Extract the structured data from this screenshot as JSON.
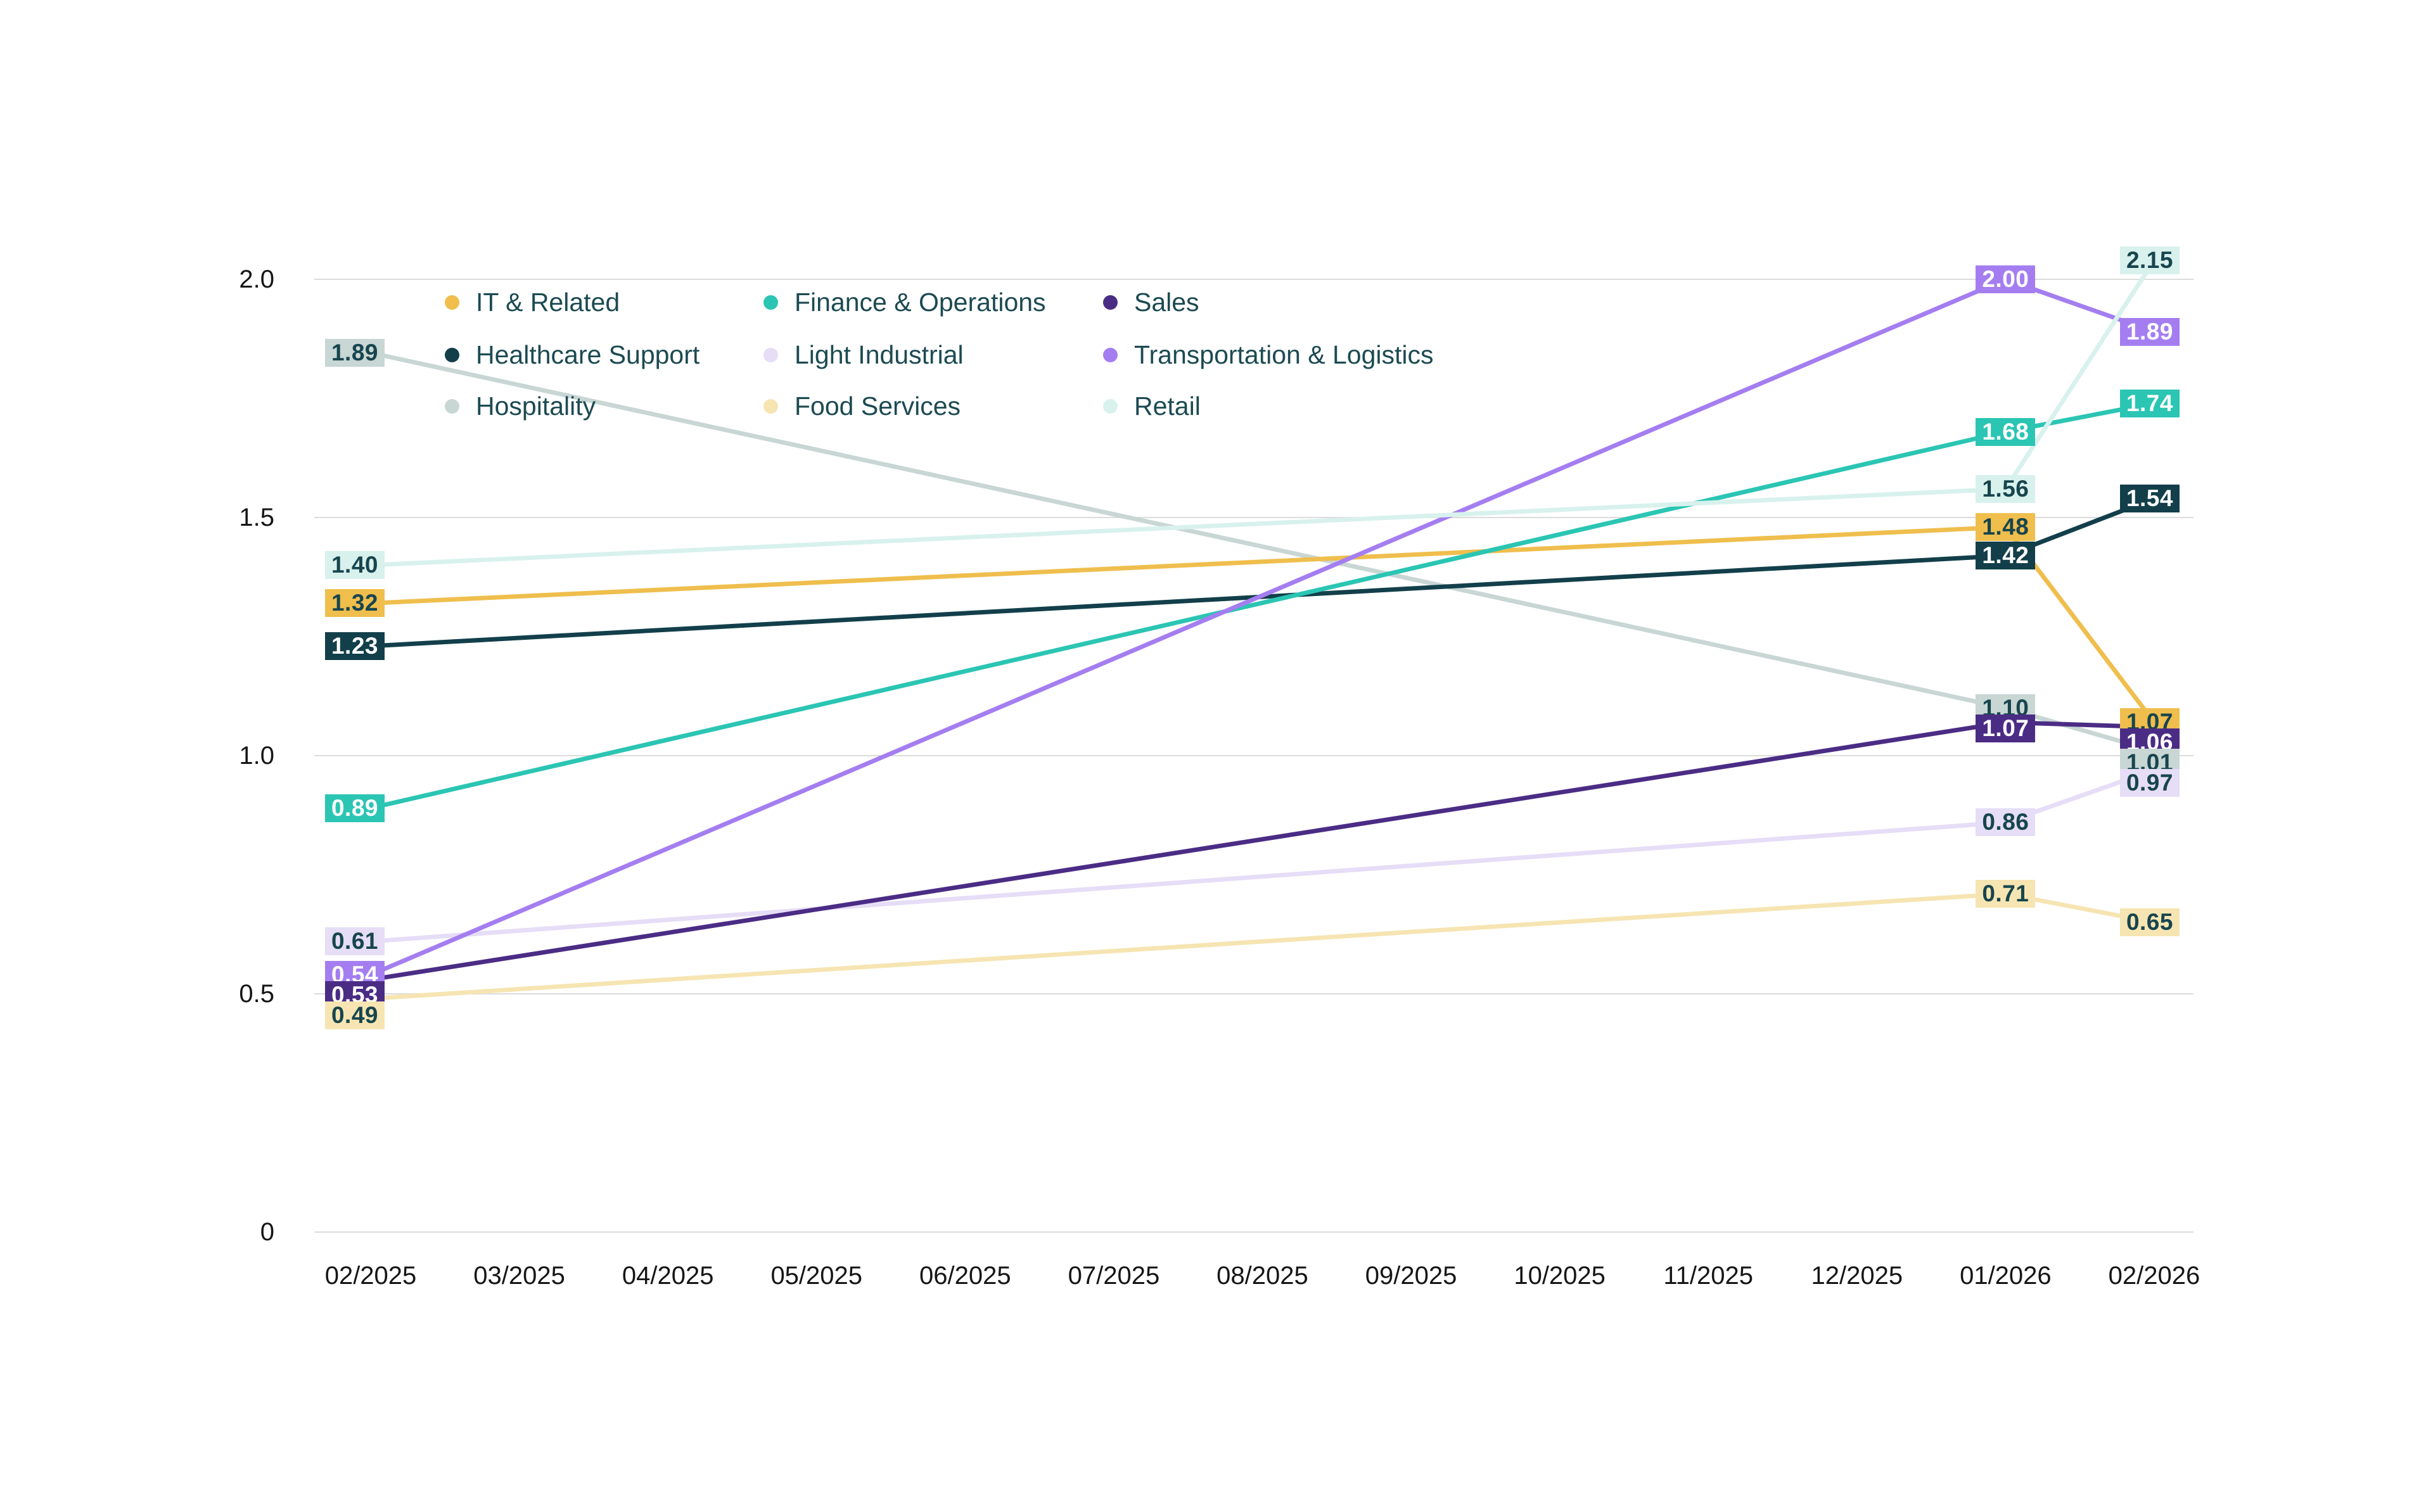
{
  "chart_data": {
    "type": "line",
    "title": "",
    "xlabel": "",
    "ylabel": "",
    "x_tick_labels": [
      "02/2025",
      "03/2025",
      "04/2025",
      "05/2025",
      "06/2025",
      "07/2025",
      "08/2025",
      "09/2025",
      "10/2025",
      "11/2025",
      "12/2025",
      "01/2026",
      "02/2026"
    ],
    "y_tick_labels": [
      "0",
      "0.5",
      "1.0",
      "1.5",
      "2.0"
    ],
    "ylim": [
      0,
      2.0
    ],
    "grid": "horizontal",
    "labeled_x_points": [
      "02/2025",
      "01/2026",
      "02/2026"
    ],
    "series": [
      {
        "name": "IT & Related",
        "color": "#EFBE4D",
        "label_text_style": "dark",
        "values": [
          1.32,
          1.48,
          1.07
        ],
        "display": [
          "1.32",
          "1.48",
          "1.07"
        ]
      },
      {
        "name": "Finance & Operations",
        "color": "#2BC5B3",
        "label_text_style": "white",
        "values": [
          0.89,
          1.68,
          1.74
        ],
        "display": [
          "0.89",
          "1.68",
          "1.74"
        ]
      },
      {
        "name": "Sales",
        "color": "#4B2C85",
        "label_text_style": "white",
        "values": [
          0.53,
          1.07,
          1.06
        ],
        "display": [
          "0.53",
          "1.07",
          "1.06"
        ]
      },
      {
        "name": "Healthcare Support",
        "color": "#123F4A",
        "label_text_style": "white",
        "values": [
          1.23,
          1.42,
          1.54
        ],
        "display": [
          "1.23",
          "1.42",
          "1.54"
        ]
      },
      {
        "name": "Light Industrial",
        "color": "#E6DDF7",
        "label_text_style": "dark",
        "values": [
          0.61,
          0.86,
          0.97
        ],
        "display": [
          "0.61",
          "0.86",
          "0.97"
        ]
      },
      {
        "name": "Transportation & Logistics",
        "color": "#A47EF0",
        "label_text_style": "white",
        "values": [
          0.54,
          2.0,
          1.89
        ],
        "display": [
          "0.54",
          "2.00",
          "1.89"
        ]
      },
      {
        "name": "Hospitality",
        "color": "#C8D6D4",
        "label_text_style": "dark",
        "values": [
          1.89,
          1.1,
          1.01
        ],
        "display": [
          "1.89",
          "1.10",
          "1.01"
        ]
      },
      {
        "name": "Food Services",
        "color": "#F6E5B2",
        "label_text_style": "dark",
        "values": [
          0.49,
          0.71,
          0.65
        ],
        "display": [
          "0.49",
          "0.71",
          "0.65"
        ]
      },
      {
        "name": "Retail",
        "color": "#D8F1ED",
        "label_text_style": "dark",
        "values": [
          1.4,
          1.56,
          2.15
        ],
        "display": [
          "1.40",
          "1.56",
          "2.15"
        ]
      }
    ],
    "legend": {
      "position": "top-left-inside",
      "rows": [
        [
          "IT & Related",
          "Finance & Operations",
          "Sales"
        ],
        [
          "Healthcare Support",
          "Light Industrial",
          "Transportation & Logistics"
        ],
        [
          "Hospitality",
          "Food Services",
          "Retail"
        ]
      ]
    },
    "colors": {
      "label_text_dark": "#17454E",
      "label_text_white": "#FFFFFF",
      "gridline": "#DCDCDC",
      "axis_text": "#161616",
      "legend_text": "#1C4A52"
    }
  }
}
